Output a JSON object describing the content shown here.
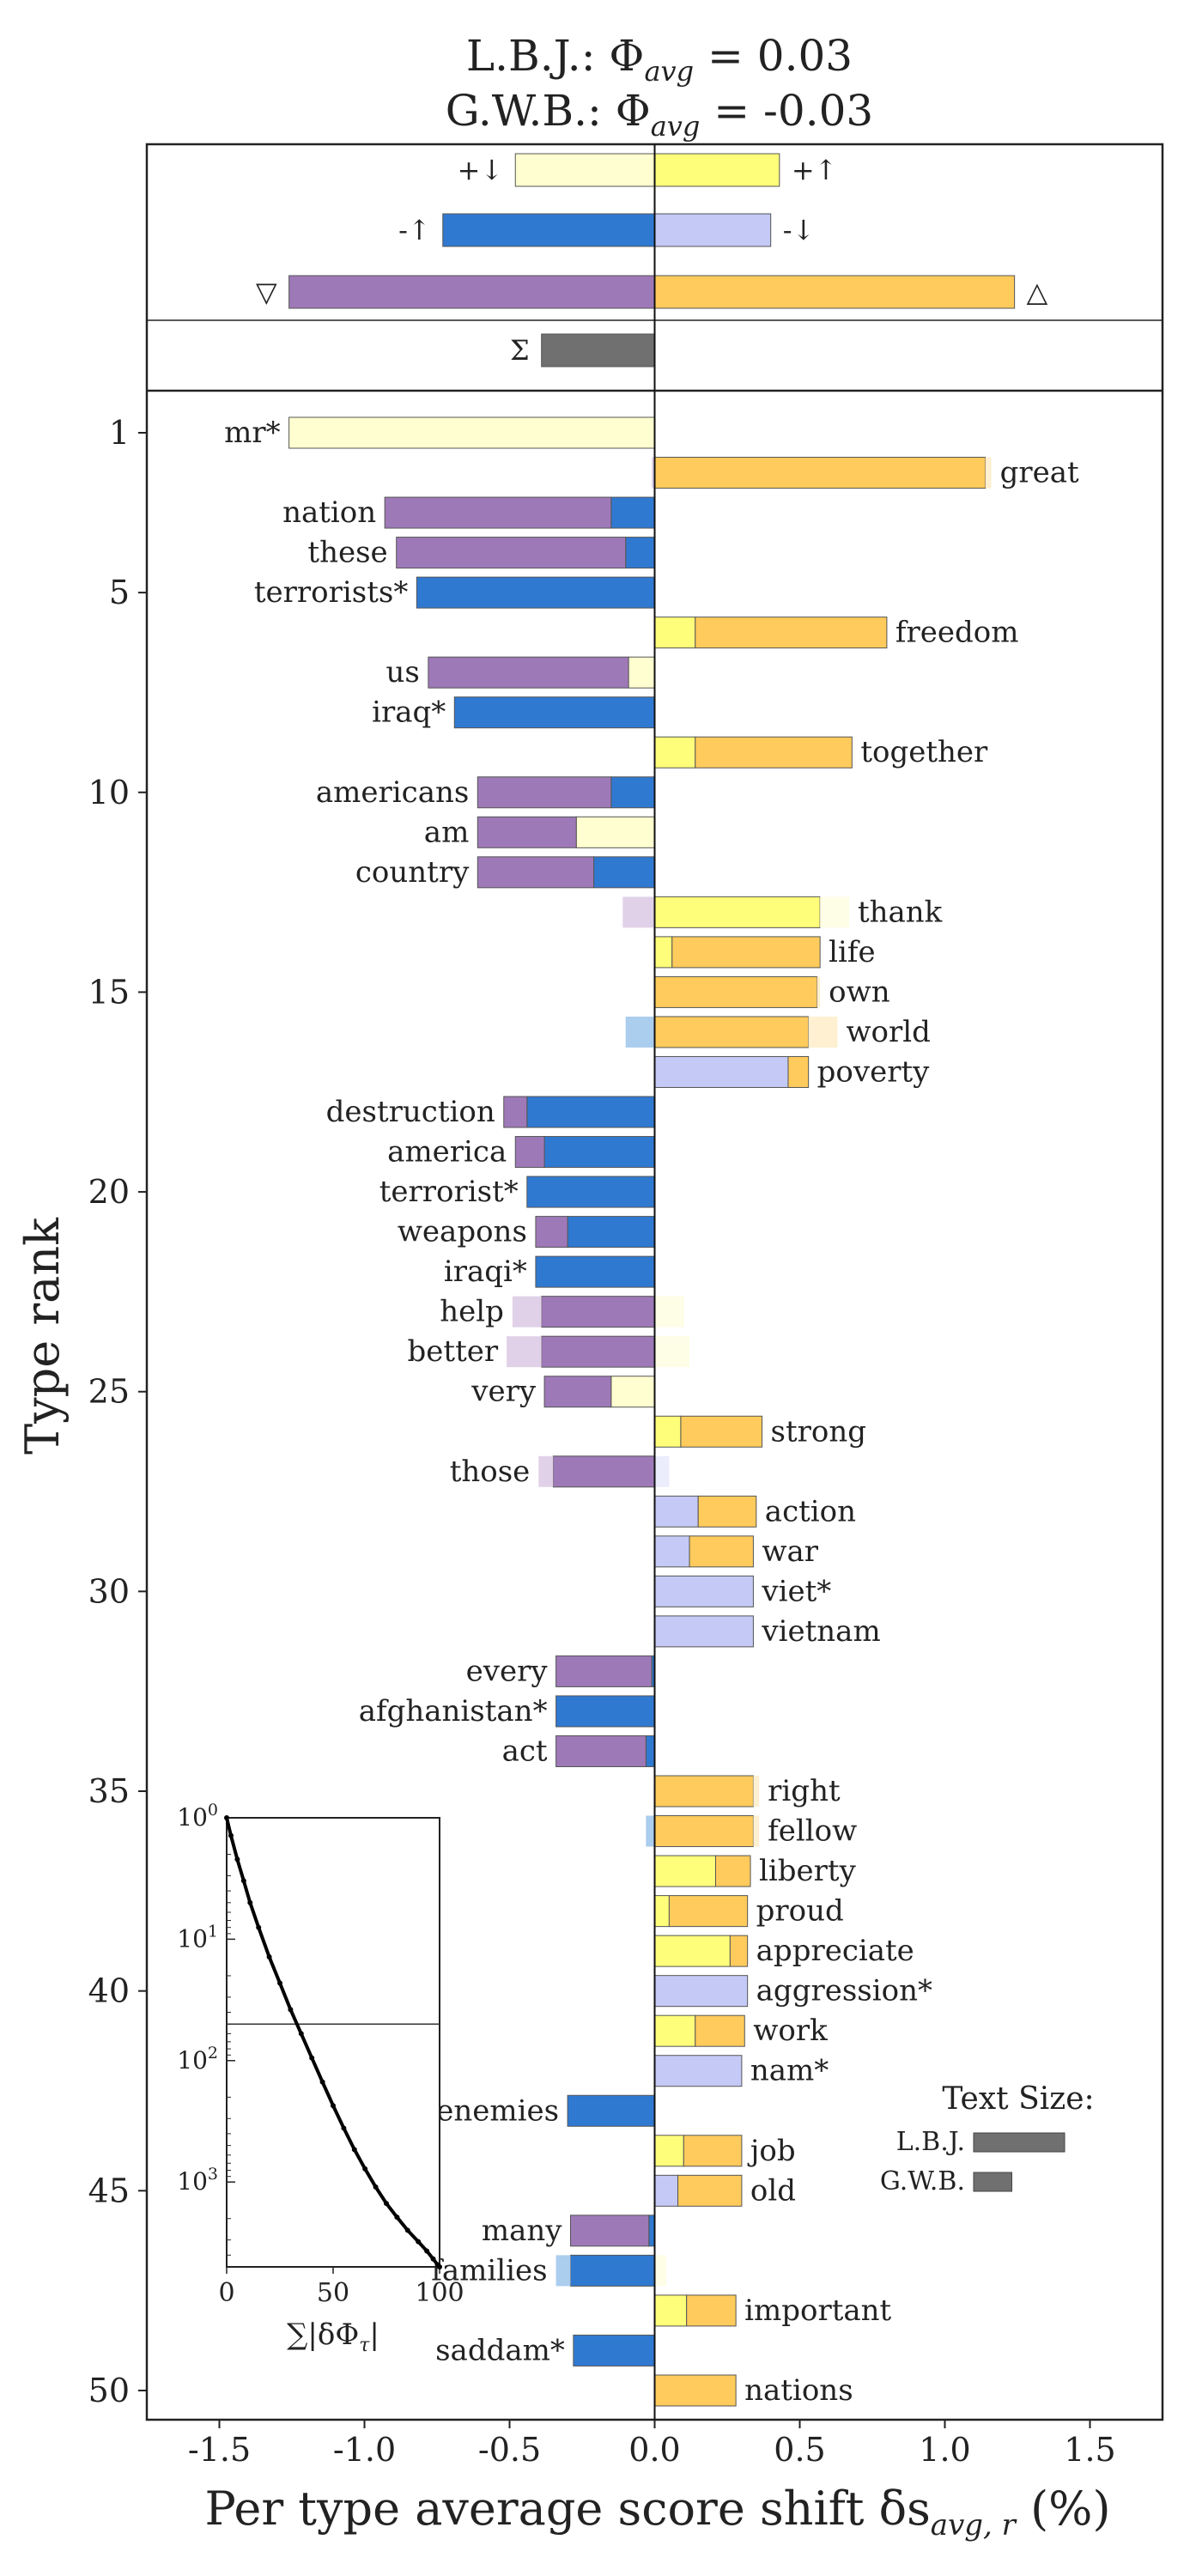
{
  "chart_data": {
    "type": "bar",
    "title_line1": "L.B.J.: Φ",
    "title_line2": "G.W.B.: Φ",
    "title_sub": "avg",
    "title_val1": " = 0.03",
    "title_val2": " = -0.03",
    "xlabel": "Per type average score shift δs",
    "xlabel_sub": "avg, r",
    "xlabel_unit": " (%)",
    "ylabel": "Type rank",
    "xlim": [
      -1.75,
      1.75
    ],
    "xticks": [
      "-1.5",
      "-1.0",
      "-0.5",
      "0.0",
      "0.5",
      "1.0",
      "1.5"
    ],
    "xtick_values": [
      -1.5,
      -1.0,
      -0.5,
      0.0,
      0.5,
      1.0,
      1.5
    ],
    "yticks": [
      "1",
      "5",
      "10",
      "15",
      "20",
      "25",
      "30",
      "35",
      "40",
      "45",
      "50"
    ],
    "ytick_values": [
      1,
      5,
      10,
      15,
      20,
      25,
      30,
      35,
      40,
      45,
      50
    ],
    "colors": {
      "plus_down": "#FEFED0",
      "plus_up": "#FEFE7A",
      "minus_up": "#3079D1",
      "minus_down": "#C4C9F6",
      "purple": "#9E79B8",
      "orange": "#FECB5C",
      "sum": "#707070",
      "faded_purple": "#E0D1E8",
      "faded_blue": "#ABCDEE",
      "faded_yellow": "#FEFEE6",
      "faded_orange": "#FEF0D0",
      "faded_lavender": "#EBECFC"
    },
    "summary": [
      {
        "label": "+↓",
        "value": -0.48,
        "color": "plus_down",
        "label_side": "left"
      },
      {
        "label": "+↑",
        "value": 0.43,
        "color": "plus_up",
        "label_side": "right"
      },
      {
        "label": "-↑",
        "value": -0.73,
        "color": "minus_up",
        "label_side": "left"
      },
      {
        "label": "-↓",
        "value": 0.4,
        "color": "minus_down",
        "label_side": "right"
      },
      {
        "label": "▽",
        "value": -1.26,
        "color": "purple",
        "label_side": "left"
      },
      {
        "label": "△",
        "value": 1.24,
        "color": "orange",
        "label_side": "right"
      }
    ],
    "sum_bar": {
      "label": "Σ",
      "value": -0.39,
      "color": "sum"
    },
    "words": [
      {
        "rank": 1,
        "word": "mr*",
        "segments": [
          {
            "from": 0,
            "to": -1.26,
            "color": "plus_down"
          }
        ]
      },
      {
        "rank": 2,
        "word": "great",
        "segments": [
          {
            "from": 0,
            "to": -0.01,
            "color": "faded_purple"
          },
          {
            "from": 0,
            "to": 1.14,
            "color": "orange"
          },
          {
            "from": 1.14,
            "to": 1.16,
            "color": "faded_orange"
          }
        ]
      },
      {
        "rank": 3,
        "word": "nation",
        "segments": [
          {
            "from": 0,
            "to": -0.15,
            "color": "minus_up"
          },
          {
            "from": -0.15,
            "to": -0.93,
            "color": "purple"
          }
        ]
      },
      {
        "rank": 4,
        "word": "these",
        "segments": [
          {
            "from": 0,
            "to": -0.1,
            "color": "minus_up"
          },
          {
            "from": -0.1,
            "to": -0.89,
            "color": "purple"
          }
        ]
      },
      {
        "rank": 5,
        "word": "terrorists*",
        "segments": [
          {
            "from": 0,
            "to": -0.82,
            "color": "minus_up"
          }
        ]
      },
      {
        "rank": 6,
        "word": "freedom",
        "segments": [
          {
            "from": 0,
            "to": 0.14,
            "color": "plus_up"
          },
          {
            "from": 0.14,
            "to": 0.8,
            "color": "orange"
          }
        ]
      },
      {
        "rank": 7,
        "word": "us",
        "segments": [
          {
            "from": 0,
            "to": -0.09,
            "color": "plus_down"
          },
          {
            "from": -0.09,
            "to": -0.78,
            "color": "purple"
          }
        ]
      },
      {
        "rank": 8,
        "word": "iraq*",
        "segments": [
          {
            "from": 0,
            "to": -0.69,
            "color": "minus_up"
          }
        ]
      },
      {
        "rank": 9,
        "word": "together",
        "segments": [
          {
            "from": 0,
            "to": 0.14,
            "color": "plus_up"
          },
          {
            "from": 0.14,
            "to": 0.68,
            "color": "orange"
          }
        ]
      },
      {
        "rank": 10,
        "word": "americans",
        "segments": [
          {
            "from": 0,
            "to": -0.15,
            "color": "minus_up"
          },
          {
            "from": -0.15,
            "to": -0.61,
            "color": "purple"
          }
        ]
      },
      {
        "rank": 11,
        "word": "am",
        "segments": [
          {
            "from": 0,
            "to": -0.27,
            "color": "plus_down"
          },
          {
            "from": -0.27,
            "to": -0.61,
            "color": "purple"
          }
        ]
      },
      {
        "rank": 12,
        "word": "country",
        "segments": [
          {
            "from": 0,
            "to": -0.21,
            "color": "minus_up"
          },
          {
            "from": -0.21,
            "to": -0.61,
            "color": "purple"
          }
        ]
      },
      {
        "rank": 13,
        "word": "thank",
        "segments": [
          {
            "from": 0,
            "to": -0.11,
            "color": "faded_purple"
          },
          {
            "from": 0,
            "to": 0.57,
            "color": "plus_up"
          },
          {
            "from": 0.57,
            "to": 0.67,
            "color": "faded_yellow"
          }
        ]
      },
      {
        "rank": 14,
        "word": "life",
        "segments": [
          {
            "from": 0,
            "to": 0.06,
            "color": "plus_up"
          },
          {
            "from": 0.06,
            "to": 0.57,
            "color": "orange"
          }
        ]
      },
      {
        "rank": 15,
        "word": "own",
        "segments": [
          {
            "from": 0,
            "to": 0.56,
            "color": "orange"
          },
          {
            "from": 0.56,
            "to": 0.57,
            "color": "faded_orange"
          }
        ]
      },
      {
        "rank": 16,
        "word": "world",
        "segments": [
          {
            "from": 0,
            "to": -0.1,
            "color": "faded_blue"
          },
          {
            "from": 0,
            "to": 0.53,
            "color": "orange"
          },
          {
            "from": 0.53,
            "to": 0.63,
            "color": "faded_orange"
          }
        ]
      },
      {
        "rank": 17,
        "word": "poverty",
        "segments": [
          {
            "from": 0,
            "to": 0.46,
            "color": "minus_down"
          },
          {
            "from": 0.46,
            "to": 0.53,
            "color": "orange"
          }
        ]
      },
      {
        "rank": 18,
        "word": "destruction",
        "segments": [
          {
            "from": 0,
            "to": -0.44,
            "color": "minus_up"
          },
          {
            "from": -0.44,
            "to": -0.52,
            "color": "purple"
          }
        ]
      },
      {
        "rank": 19,
        "word": "america",
        "segments": [
          {
            "from": 0,
            "to": -0.38,
            "color": "minus_up"
          },
          {
            "from": -0.38,
            "to": -0.48,
            "color": "purple"
          }
        ]
      },
      {
        "rank": 20,
        "word": "terrorist*",
        "segments": [
          {
            "from": 0,
            "to": -0.44,
            "color": "minus_up"
          }
        ]
      },
      {
        "rank": 21,
        "word": "weapons",
        "segments": [
          {
            "from": 0,
            "to": -0.3,
            "color": "minus_up"
          },
          {
            "from": -0.3,
            "to": -0.41,
            "color": "purple"
          }
        ]
      },
      {
        "rank": 22,
        "word": "iraqi*",
        "segments": [
          {
            "from": 0,
            "to": -0.41,
            "color": "minus_up"
          }
        ]
      },
      {
        "rank": 23,
        "word": "help",
        "segments": [
          {
            "from": 0,
            "to": -0.39,
            "color": "purple"
          },
          {
            "from": -0.39,
            "to": -0.49,
            "color": "faded_purple"
          },
          {
            "from": 0,
            "to": 0.1,
            "color": "faded_yellow"
          }
        ]
      },
      {
        "rank": 24,
        "word": "better",
        "segments": [
          {
            "from": 0,
            "to": -0.39,
            "color": "purple"
          },
          {
            "from": -0.39,
            "to": -0.51,
            "color": "faded_purple"
          },
          {
            "from": 0,
            "to": 0.12,
            "color": "faded_yellow"
          }
        ]
      },
      {
        "rank": 25,
        "word": "very",
        "segments": [
          {
            "from": 0,
            "to": -0.15,
            "color": "plus_down"
          },
          {
            "from": -0.15,
            "to": -0.38,
            "color": "purple"
          }
        ]
      },
      {
        "rank": 26,
        "word": "strong",
        "segments": [
          {
            "from": 0,
            "to": 0.09,
            "color": "plus_up"
          },
          {
            "from": 0.09,
            "to": 0.37,
            "color": "orange"
          }
        ]
      },
      {
        "rank": 27,
        "word": "those",
        "segments": [
          {
            "from": 0,
            "to": -0.35,
            "color": "purple"
          },
          {
            "from": -0.35,
            "to": -0.4,
            "color": "faded_purple"
          },
          {
            "from": 0,
            "to": 0.05,
            "color": "faded_lavender"
          }
        ]
      },
      {
        "rank": 28,
        "word": "action",
        "segments": [
          {
            "from": 0,
            "to": 0.15,
            "color": "minus_down"
          },
          {
            "from": 0.15,
            "to": 0.35,
            "color": "orange"
          }
        ]
      },
      {
        "rank": 29,
        "word": "war",
        "segments": [
          {
            "from": 0,
            "to": 0.12,
            "color": "minus_down"
          },
          {
            "from": 0.12,
            "to": 0.34,
            "color": "orange"
          }
        ]
      },
      {
        "rank": 30,
        "word": "viet*",
        "segments": [
          {
            "from": 0,
            "to": 0.34,
            "color": "minus_down"
          }
        ]
      },
      {
        "rank": 31,
        "word": "vietnam",
        "segments": [
          {
            "from": 0,
            "to": 0.34,
            "color": "minus_down"
          }
        ]
      },
      {
        "rank": 32,
        "word": "every",
        "segments": [
          {
            "from": 0,
            "to": -0.01,
            "color": "minus_up"
          },
          {
            "from": -0.01,
            "to": -0.34,
            "color": "purple"
          }
        ]
      },
      {
        "rank": 33,
        "word": "afghanistan*",
        "segments": [
          {
            "from": 0,
            "to": -0.34,
            "color": "minus_up"
          }
        ]
      },
      {
        "rank": 34,
        "word": "act",
        "segments": [
          {
            "from": 0,
            "to": -0.03,
            "color": "minus_up"
          },
          {
            "from": -0.03,
            "to": -0.34,
            "color": "purple"
          }
        ]
      },
      {
        "rank": 35,
        "word": "right",
        "segments": [
          {
            "from": 0,
            "to": 0.34,
            "color": "orange"
          },
          {
            "from": 0.34,
            "to": 0.36,
            "color": "faded_orange"
          }
        ]
      },
      {
        "rank": 36,
        "word": "fellow",
        "segments": [
          {
            "from": 0,
            "to": -0.03,
            "color": "faded_blue"
          },
          {
            "from": 0,
            "to": 0.34,
            "color": "orange"
          },
          {
            "from": 0.34,
            "to": 0.36,
            "color": "faded_orange"
          }
        ]
      },
      {
        "rank": 37,
        "word": "liberty",
        "segments": [
          {
            "from": 0,
            "to": 0.21,
            "color": "plus_up"
          },
          {
            "from": 0.21,
            "to": 0.33,
            "color": "orange"
          }
        ]
      },
      {
        "rank": 38,
        "word": "proud",
        "segments": [
          {
            "from": 0,
            "to": 0.05,
            "color": "plus_up"
          },
          {
            "from": 0.05,
            "to": 0.32,
            "color": "orange"
          }
        ]
      },
      {
        "rank": 39,
        "word": "appreciate",
        "segments": [
          {
            "from": 0,
            "to": 0.26,
            "color": "plus_up"
          },
          {
            "from": 0.26,
            "to": 0.32,
            "color": "orange"
          }
        ]
      },
      {
        "rank": 40,
        "word": "aggression*",
        "segments": [
          {
            "from": 0,
            "to": 0.32,
            "color": "minus_down"
          }
        ]
      },
      {
        "rank": 41,
        "word": "work",
        "segments": [
          {
            "from": 0,
            "to": 0.14,
            "color": "plus_up"
          },
          {
            "from": 0.14,
            "to": 0.31,
            "color": "orange"
          }
        ]
      },
      {
        "rank": 42,
        "word": "nam*",
        "segments": [
          {
            "from": 0,
            "to": 0.3,
            "color": "minus_down"
          }
        ]
      },
      {
        "rank": 43,
        "word": "enemies",
        "segments": [
          {
            "from": 0,
            "to": -0.3,
            "color": "minus_up"
          }
        ]
      },
      {
        "rank": 44,
        "word": "job",
        "segments": [
          {
            "from": 0,
            "to": 0.1,
            "color": "plus_up"
          },
          {
            "from": 0.1,
            "to": 0.3,
            "color": "orange"
          }
        ]
      },
      {
        "rank": 45,
        "word": "old",
        "segments": [
          {
            "from": 0,
            "to": 0.08,
            "color": "minus_down"
          },
          {
            "from": 0.08,
            "to": 0.3,
            "color": "orange"
          }
        ]
      },
      {
        "rank": 46,
        "word": "many",
        "segments": [
          {
            "from": 0,
            "to": -0.02,
            "color": "minus_up"
          },
          {
            "from": -0.02,
            "to": -0.29,
            "color": "purple"
          }
        ]
      },
      {
        "rank": 47,
        "word": "families",
        "segments": [
          {
            "from": 0,
            "to": -0.29,
            "color": "minus_up"
          },
          {
            "from": -0.29,
            "to": -0.34,
            "color": "faded_blue"
          },
          {
            "from": 0,
            "to": 0.04,
            "color": "faded_yellow"
          }
        ]
      },
      {
        "rank": 48,
        "word": "important",
        "segments": [
          {
            "from": 0,
            "to": 0.11,
            "color": "plus_up"
          },
          {
            "from": 0.11,
            "to": 0.28,
            "color": "orange"
          }
        ]
      },
      {
        "rank": 49,
        "word": "saddam*",
        "segments": [
          {
            "from": 0,
            "to": -0.28,
            "color": "minus_up"
          }
        ]
      },
      {
        "rank": 50,
        "word": "nations",
        "segments": [
          {
            "from": 0,
            "to": 0.28,
            "color": "orange"
          }
        ]
      }
    ],
    "legend": {
      "title": "Text Size:",
      "entries": [
        {
          "label": "L.B.J.",
          "relative_size": 1.0
        },
        {
          "label": "G.W.B.",
          "relative_size": 0.42
        }
      ]
    },
    "inset": {
      "type": "line",
      "xlabel": "∑|δΦ",
      "xlabel_sub": "τ",
      "xlabel_end": "|",
      "xticks": [
        "0",
        "50",
        "100"
      ],
      "xtick_values": [
        0,
        50,
        100
      ],
      "yticks": [
        {
          "base": "10",
          "exp": "0",
          "value": 1
        },
        {
          "base": "10",
          "exp": "1",
          "value": 10
        },
        {
          "base": "10",
          "exp": "2",
          "value": 100
        },
        {
          "base": "10",
          "exp": "3",
          "value": 1000
        }
      ],
      "ylim": [
        1,
        5000
      ],
      "cutoff_rank": 50,
      "curve_points": [
        [
          0,
          1
        ],
        [
          2,
          1.4
        ],
        [
          5,
          2.2
        ],
        [
          8,
          3.3
        ],
        [
          11,
          5
        ],
        [
          15,
          8
        ],
        [
          20,
          14
        ],
        [
          25,
          23
        ],
        [
          30,
          38
        ],
        [
          35,
          60
        ],
        [
          40,
          95
        ],
        [
          45,
          150
        ],
        [
          50,
          235
        ],
        [
          55,
          360
        ],
        [
          60,
          540
        ],
        [
          65,
          780
        ],
        [
          70,
          1100
        ],
        [
          75,
          1500
        ],
        [
          80,
          1950
        ],
        [
          85,
          2500
        ],
        [
          90,
          3100
        ],
        [
          94,
          3700
        ],
        [
          97,
          4300
        ],
        [
          99,
          4800
        ],
        [
          100,
          5000
        ]
      ]
    }
  }
}
